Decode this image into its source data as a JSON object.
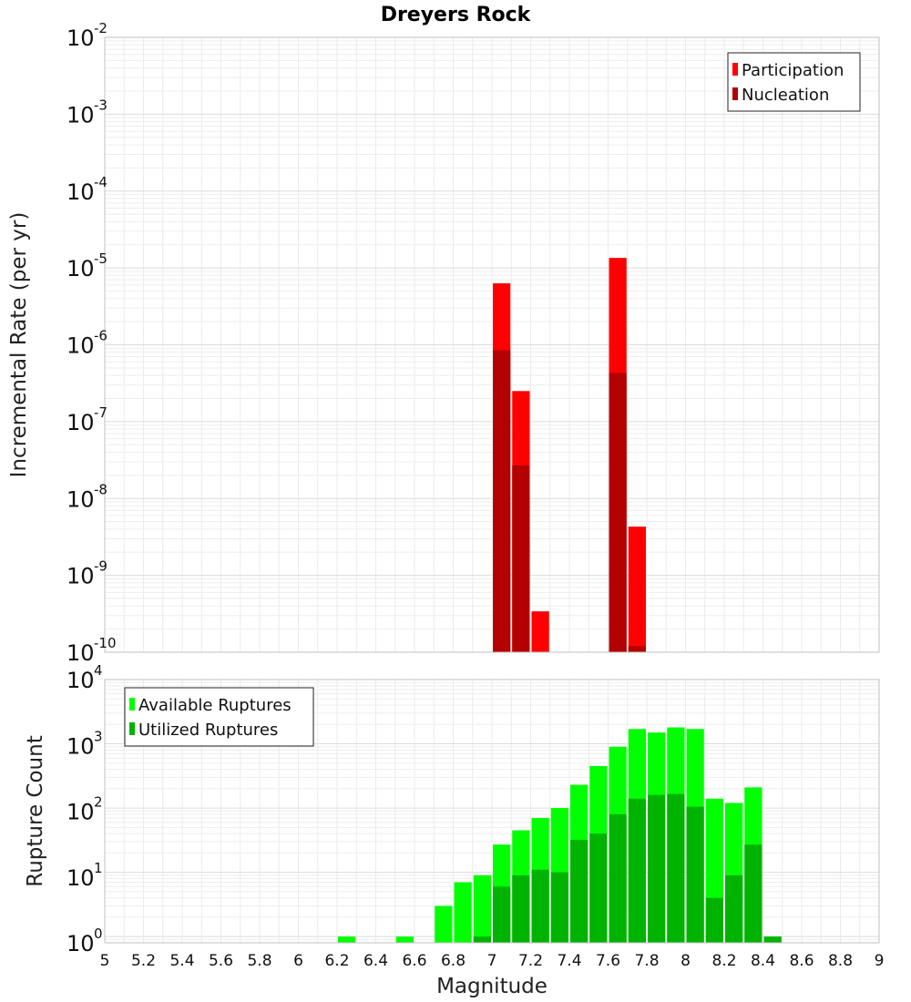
{
  "chart_data": [
    {
      "type": "bar",
      "title": "Dreyers Rock",
      "xlabel": "",
      "ylabel": "Incremental Rate (per yr)",
      "yscale": "log",
      "ylim": [
        1e-10,
        0.01
      ],
      "xlim": [
        5,
        9
      ],
      "grid": true,
      "legend_position": "top-right",
      "bin_width": 0.1,
      "series": [
        {
          "name": "Participation",
          "color": "#ff0000",
          "x": [
            7.05,
            7.15,
            7.25,
            7.65,
            7.75
          ],
          "values": [
            6.3e-06,
            2.5e-07,
            3.4e-10,
            1.35e-05,
            4.3e-09
          ]
        },
        {
          "name": "Nucleation",
          "color": "#b30000",
          "x": [
            7.05,
            7.15,
            7.65,
            7.75
          ],
          "values": [
            8.5e-07,
            2.7e-08,
            4.3e-07,
            1.2e-10
          ]
        }
      ]
    },
    {
      "type": "bar",
      "title": "",
      "xlabel": "Magnitude",
      "ylabel": "Rupture Count",
      "yscale": "log",
      "ylim": [
        0.8,
        10000
      ],
      "xlim": [
        5,
        9
      ],
      "grid": true,
      "legend_position": "top-left",
      "bin_width": 0.1,
      "series": [
        {
          "name": "Available Ruptures",
          "color": "#00ff00",
          "x": [
            6.25,
            6.55,
            6.75,
            6.85,
            6.95,
            7.05,
            7.15,
            7.25,
            7.35,
            7.45,
            7.55,
            7.65,
            7.75,
            7.85,
            7.95,
            8.05,
            8.15,
            8.25,
            8.35,
            8.45
          ],
          "values": [
            1,
            1,
            3,
            7,
            9,
            27,
            45,
            70,
            100,
            230,
            450,
            900,
            1700,
            1500,
            1800,
            1700,
            140,
            120,
            210,
            1
          ]
        },
        {
          "name": "Utilized Ruptures",
          "color": "#00b300",
          "x": [
            6.95,
            7.05,
            7.15,
            7.25,
            7.35,
            7.45,
            7.55,
            7.65,
            7.75,
            7.85,
            7.95,
            8.05,
            8.15,
            8.25,
            8.35,
            8.45
          ],
          "values": [
            1,
            6,
            9,
            11,
            10,
            32,
            40,
            80,
            140,
            160,
            165,
            105,
            4,
            9,
            27,
            1
          ]
        }
      ]
    }
  ],
  "xticks": [
    "5",
    "5.2",
    "5.4",
    "5.6",
    "5.8",
    "6",
    "6.2",
    "6.4",
    "6.6",
    "6.8",
    "7",
    "7.2",
    "7.4",
    "7.6",
    "7.8",
    "8",
    "8.2",
    "8.4",
    "8.6",
    "8.8",
    "9"
  ],
  "top_yticks": [
    {
      "base": "10",
      "exp": "-2"
    },
    {
      "base": "10",
      "exp": "-3"
    },
    {
      "base": "10",
      "exp": "-4"
    },
    {
      "base": "10",
      "exp": "-5"
    },
    {
      "base": "10",
      "exp": "-6"
    },
    {
      "base": "10",
      "exp": "-7"
    },
    {
      "base": "10",
      "exp": "-8"
    },
    {
      "base": "10",
      "exp": "-9"
    },
    {
      "base": "10",
      "exp": "-10"
    }
  ],
  "bottom_yticks": [
    {
      "base": "10",
      "exp": "4"
    },
    {
      "base": "10",
      "exp": "3"
    },
    {
      "base": "10",
      "exp": "2"
    },
    {
      "base": "10",
      "exp": "1"
    },
    {
      "base": "10",
      "exp": "0"
    }
  ]
}
